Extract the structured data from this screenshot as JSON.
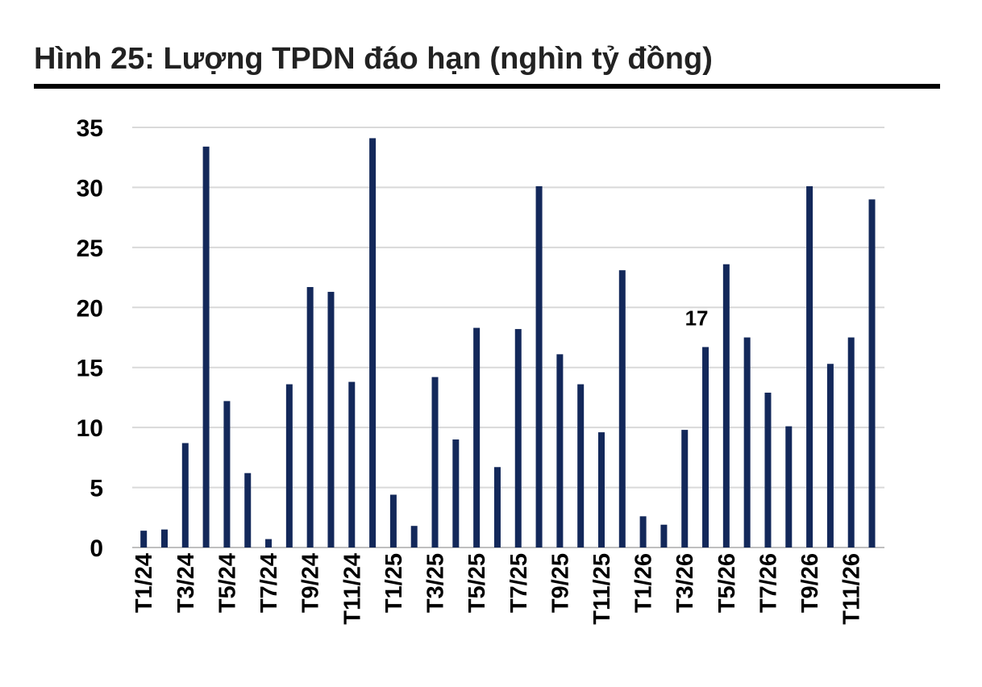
{
  "title": "Hình 25: Lượng TPDN đáo hạn (nghìn tỷ đồng)",
  "colors": {
    "bar": "#13285a",
    "grid": "#d9d9d9",
    "axis": "#bfbfbf",
    "rule": "#000000"
  },
  "chart_data": {
    "type": "bar",
    "title": "Hình 25: Lượng TPDN đáo hạn (nghìn tỷ đồng)",
    "xlabel": "",
    "ylabel": "",
    "ylim": [
      0,
      35
    ],
    "yticks": [
      0,
      5,
      10,
      15,
      20,
      25,
      30,
      35
    ],
    "grid": true,
    "categories": [
      "T1/24",
      "T2/24",
      "T3/24",
      "T4/24",
      "T5/24",
      "T6/24",
      "T7/24",
      "T8/24",
      "T9/24",
      "T10/24",
      "T11/24",
      "T12/24",
      "T1/25",
      "T2/25",
      "T3/25",
      "T4/25",
      "T5/25",
      "T6/25",
      "T7/25",
      "T8/25",
      "T9/25",
      "T10/25",
      "T11/25",
      "T12/25",
      "T1/26",
      "T2/26",
      "T3/26",
      "T4/26",
      "T5/26",
      "T6/26",
      "T7/26",
      "T8/26",
      "T9/26",
      "T10/26",
      "T11/26",
      "T12/26"
    ],
    "tick_labels": [
      "T1/24",
      "",
      "T3/24",
      "",
      "T5/24",
      "",
      "T7/24",
      "",
      "T9/24",
      "",
      "T11/24",
      "",
      "T1/25",
      "",
      "T3/25",
      "",
      "T5/25",
      "",
      "T7/25",
      "",
      "T9/25",
      "",
      "T11/25",
      "",
      "T1/26",
      "",
      "T3/26",
      "",
      "T5/26",
      "",
      "T7/26",
      "",
      "T9/26",
      "",
      "T11/26",
      ""
    ],
    "values": [
      1.4,
      1.5,
      8.7,
      33.4,
      12.2,
      6.2,
      0.7,
      13.6,
      21.7,
      21.3,
      13.8,
      34.1,
      4.4,
      1.8,
      14.2,
      9.0,
      18.3,
      6.7,
      18.2,
      30.1,
      16.1,
      13.6,
      9.6,
      23.1,
      2.6,
      1.9,
      9.8,
      16.7,
      23.6,
      17.5,
      12.9,
      10.1,
      30.1,
      15.3,
      17.5,
      29.0
    ],
    "data_labels": [
      {
        "index": 27,
        "text": "17"
      }
    ]
  }
}
